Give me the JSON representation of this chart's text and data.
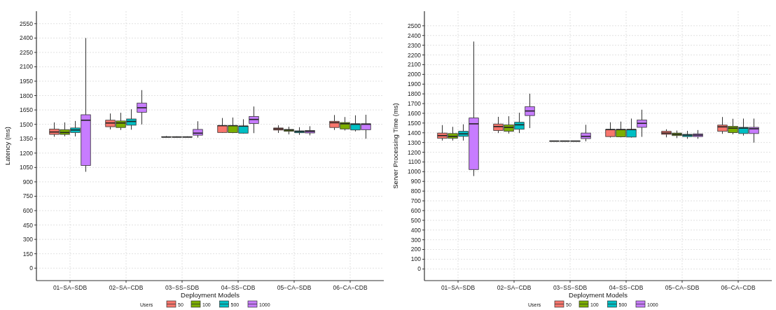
{
  "chart_data": [
    {
      "type": "box",
      "xlabel": "Deployment Models",
      "ylabel": "Latency (ms)",
      "legend_title": "Users",
      "legend": "bottom",
      "grid": true,
      "categories": [
        "01−SA−SDB",
        "02−SA−CDB",
        "03−SS−SDB",
        "04−SS−CDB",
        "05−CA−SDB",
        "06−CA−CDB"
      ],
      "ylim": [
        -130,
        2680
      ],
      "yticks": [
        0,
        150,
        300,
        450,
        600,
        750,
        900,
        1050,
        1200,
        1350,
        1500,
        1650,
        1800,
        1950,
        2100,
        2250,
        2400,
        2550
      ],
      "series": [
        {
          "name": "50",
          "color": "#f8766d",
          "boxes": [
            {
              "low": 1370,
              "q1": 1395,
              "median": 1420,
              "q3": 1450,
              "high": 1520
            },
            {
              "low": 1447,
              "q1": 1475,
              "median": 1514,
              "q3": 1543,
              "high": 1613
            },
            {
              "low": 1365,
              "q1": 1367,
              "median": 1368,
              "q3": 1370,
              "high": 1378
            },
            {
              "low": 1410,
              "q1": 1415,
              "median": 1486,
              "q3": 1486,
              "high": 1566
            },
            {
              "low": 1410,
              "q1": 1440,
              "median": 1452,
              "q3": 1462,
              "high": 1490
            },
            {
              "low": 1441,
              "q1": 1467,
              "median": 1517,
              "q3": 1532,
              "high": 1597
            }
          ]
        },
        {
          "name": "100",
          "color": "#7cae00",
          "boxes": [
            {
              "low": 1375,
              "q1": 1395,
              "median": 1415,
              "q3": 1445,
              "high": 1520
            },
            {
              "low": 1441,
              "q1": 1467,
              "median": 1514,
              "q3": 1535,
              "high": 1621
            },
            {
              "low": 1365,
              "q1": 1367,
              "median": 1368,
              "q3": 1370,
              "high": 1375
            },
            {
              "low": 1408,
              "q1": 1413,
              "median": 1486,
              "q3": 1486,
              "high": 1571
            },
            {
              "low": 1395,
              "q1": 1427,
              "median": 1440,
              "q3": 1447,
              "high": 1475
            },
            {
              "low": 1436,
              "q1": 1452,
              "median": 1506,
              "q3": 1519,
              "high": 1576
            }
          ]
        },
        {
          "name": "500",
          "color": "#00bfc4",
          "boxes": [
            {
              "low": 1374,
              "q1": 1415,
              "median": 1441,
              "q3": 1462,
              "high": 1535
            },
            {
              "low": 1444,
              "q1": 1491,
              "median": 1530,
              "q3": 1556,
              "high": 1657
            },
            {
              "low": 1365,
              "q1": 1367,
              "median": 1368,
              "q3": 1370,
              "high": 1375
            },
            {
              "low": 1403,
              "q1": 1408,
              "median": 1481,
              "q3": 1481,
              "high": 1553
            },
            {
              "low": 1390,
              "q1": 1412,
              "median": 1425,
              "q3": 1432,
              "high": 1470
            },
            {
              "low": 1426,
              "q1": 1441,
              "median": 1501,
              "q3": 1506,
              "high": 1594
            }
          ]
        },
        {
          "name": "1000",
          "color": "#c77cff",
          "boxes": [
            {
              "low": 1005,
              "q1": 1070,
              "median": 1543,
              "q3": 1600,
              "high": 2400
            },
            {
              "low": 1499,
              "q1": 1626,
              "median": 1673,
              "q3": 1722,
              "high": 1857
            },
            {
              "low": 1361,
              "q1": 1387,
              "median": 1408,
              "q3": 1447,
              "high": 1532
            },
            {
              "low": 1408,
              "q1": 1509,
              "median": 1551,
              "q3": 1582,
              "high": 1686
            },
            {
              "low": 1385,
              "q1": 1410,
              "median": 1427,
              "q3": 1435,
              "high": 1480
            },
            {
              "low": 1350,
              "q1": 1444,
              "median": 1501,
              "q3": 1506,
              "high": 1600
            }
          ]
        }
      ]
    },
    {
      "type": "box",
      "xlabel": "Deployment Models",
      "ylabel": "Server Processing Time (ms)",
      "legend_title": "Users",
      "legend": "bottom",
      "grid": true,
      "categories": [
        "01−SA−SDB",
        "02−SA−CDB",
        "03−SS−SDB",
        "04−SS−CDB",
        "05−CA−SDB",
        "06−CA−CDB"
      ],
      "ylim": [
        -120,
        2650
      ],
      "yticks": [
        0,
        100,
        200,
        300,
        400,
        500,
        600,
        700,
        800,
        900,
        1000,
        1100,
        1200,
        1300,
        1400,
        1500,
        1600,
        1700,
        1800,
        1900,
        2000,
        2100,
        2200,
        2300,
        2400,
        2500
      ],
      "series": [
        {
          "name": "50",
          "color": "#f8766d",
          "boxes": [
            {
              "low": 1320,
              "q1": 1343,
              "median": 1371,
              "q3": 1397,
              "high": 1479
            },
            {
              "low": 1397,
              "q1": 1423,
              "median": 1464,
              "q3": 1490,
              "high": 1564
            },
            {
              "low": 1312,
              "q1": 1313,
              "median": 1315,
              "q3": 1316,
              "high": 1318
            },
            {
              "low": 1351,
              "q1": 1361,
              "median": 1433,
              "q3": 1433,
              "high": 1508
            },
            {
              "low": 1353,
              "q1": 1384,
              "median": 1397,
              "q3": 1415,
              "high": 1436
            },
            {
              "low": 1389,
              "q1": 1415,
              "median": 1461,
              "q3": 1479,
              "high": 1562
            }
          ]
        },
        {
          "name": "100",
          "color": "#7cae00",
          "boxes": [
            {
              "low": 1320,
              "q1": 1343,
              "median": 1363,
              "q3": 1392,
              "high": 1461
            },
            {
              "low": 1392,
              "q1": 1415,
              "median": 1456,
              "q3": 1482,
              "high": 1570
            },
            {
              "low": 1312,
              "q1": 1313,
              "median": 1315,
              "q3": 1316,
              "high": 1318
            },
            {
              "low": 1353,
              "q1": 1358,
              "median": 1433,
              "q3": 1433,
              "high": 1515
            },
            {
              "low": 1345,
              "q1": 1371,
              "median": 1384,
              "q3": 1397,
              "high": 1423
            },
            {
              "low": 1384,
              "q1": 1402,
              "median": 1448,
              "q3": 1466,
              "high": 1544
            }
          ]
        },
        {
          "name": "500",
          "color": "#00bfc4",
          "boxes": [
            {
              "low": 1320,
              "q1": 1363,
              "median": 1389,
              "q3": 1415,
              "high": 1487
            },
            {
              "low": 1397,
              "q1": 1436,
              "median": 1482,
              "q3": 1508,
              "high": 1606
            },
            {
              "low": 1312,
              "q1": 1313,
              "median": 1315,
              "q3": 1316,
              "high": 1318
            },
            {
              "low": 1351,
              "q1": 1356,
              "median": 1433,
              "q3": 1433,
              "high": 1546
            },
            {
              "low": 1338,
              "q1": 1361,
              "median": 1376,
              "q3": 1384,
              "high": 1420
            },
            {
              "low": 1371,
              "q1": 1392,
              "median": 1448,
              "q3": 1456,
              "high": 1546
            }
          ]
        },
        {
          "name": "1000",
          "color": "#c77cff",
          "boxes": [
            {
              "low": 955,
              "q1": 1022,
              "median": 1492,
              "q3": 1552,
              "high": 2338
            },
            {
              "low": 1448,
              "q1": 1577,
              "median": 1624,
              "q3": 1668,
              "high": 1802
            },
            {
              "low": 1312,
              "q1": 1340,
              "median": 1363,
              "q3": 1397,
              "high": 1482
            },
            {
              "low": 1358,
              "q1": 1456,
              "median": 1497,
              "q3": 1531,
              "high": 1637
            },
            {
              "low": 1338,
              "q1": 1361,
              "median": 1376,
              "q3": 1389,
              "high": 1428
            },
            {
              "low": 1299,
              "q1": 1392,
              "median": 1441,
              "q3": 1456,
              "high": 1546
            }
          ]
        }
      ]
    }
  ]
}
